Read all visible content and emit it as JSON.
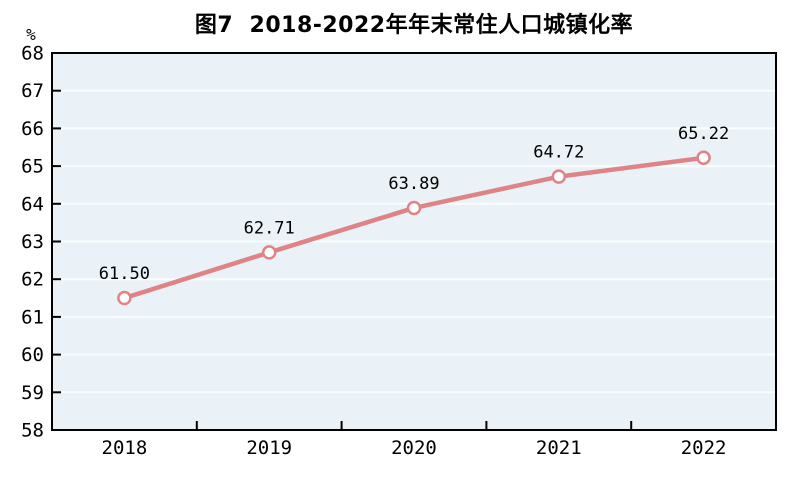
{
  "chart_data": {
    "type": "line",
    "title": "图7  2018-2022年年末常住人口城镇化率",
    "unit_label": "%",
    "categories": [
      "2018",
      "2019",
      "2020",
      "2021",
      "2022"
    ],
    "values": [
      61.5,
      62.71,
      63.89,
      64.72,
      65.22
    ],
    "data_labels": [
      "61.50",
      "62.71",
      "63.89",
      "64.72",
      "65.22"
    ],
    "ylim": [
      58,
      68
    ],
    "ytick_step": 1,
    "ytick_labels": [
      "58",
      "59",
      "60",
      "61",
      "62",
      "63",
      "64",
      "65",
      "66",
      "67",
      "68"
    ],
    "grid": "horizontal",
    "legend": "none",
    "colors": {
      "line": "#df8486",
      "marker_fill": "#ffffff",
      "plot_background": "#eaf2f7",
      "grid_line": "#fafdfe",
      "axis": "#000000",
      "text": "#000000"
    }
  }
}
